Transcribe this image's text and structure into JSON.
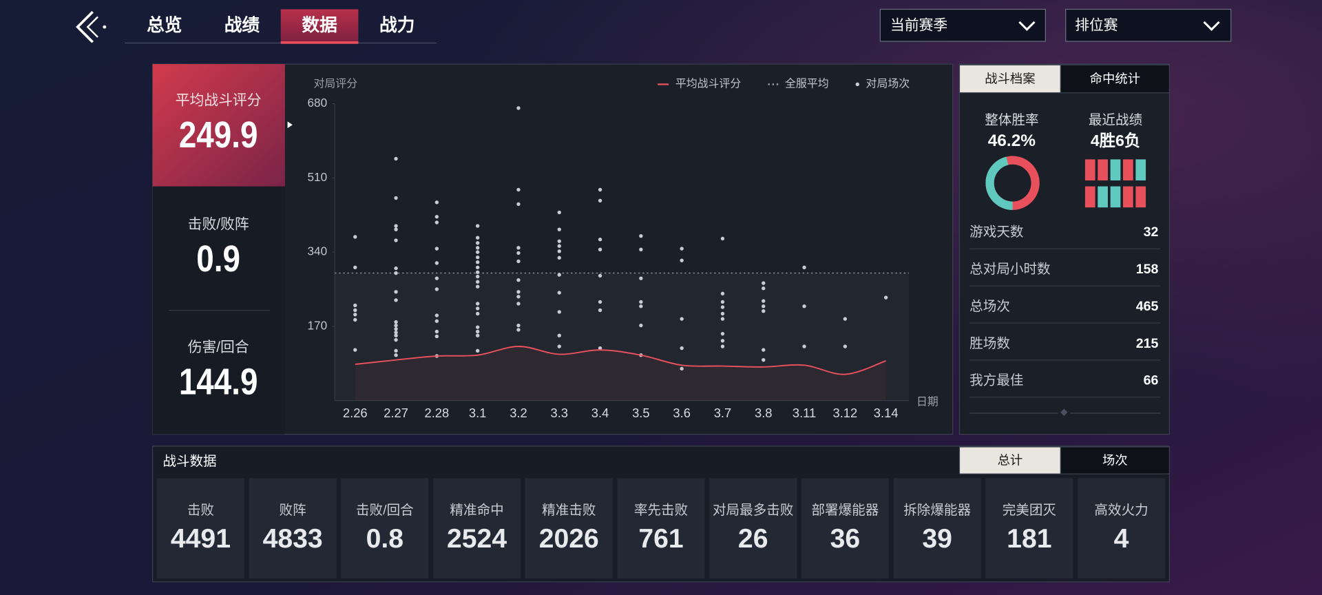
{
  "nav": {
    "tabs": [
      "总览",
      "战绩",
      "数据",
      "战力"
    ],
    "active": 2
  },
  "filters": [
    "当前赛季",
    "排位赛"
  ],
  "summary": [
    {
      "label": "平均战斗评分",
      "value": 249.9
    },
    {
      "label": "击败/败阵",
      "value": 0.9
    },
    {
      "label": "伤害/回合",
      "value": 144.9
    }
  ],
  "chart_data": {
    "type": "line",
    "y_label": "对局评分",
    "x_label": "日期",
    "categories": [
      "2.26",
      "2.27",
      "2.28",
      "3.1",
      "3.2",
      "3.3",
      "3.4",
      "3.5",
      "3.6",
      "3.7",
      "3.8",
      "3.11",
      "3.12",
      "3.14"
    ],
    "ylim": [
      0,
      680
    ],
    "yticks": [
      170,
      340,
      510,
      680
    ],
    "series": [
      {
        "name": "平均战斗评分",
        "color": "#e8505c",
        "values": [
          83,
          93,
          102,
          104,
          124,
          106,
          116,
          104,
          81,
          79,
          77,
          81,
          60,
          91
        ]
      },
      {
        "name": "全服平均",
        "color": "#9aa0aa",
        "value": 292
      },
      {
        "name": "对局场次",
        "color": "#c8ccd2",
        "values": [
          [
            375,
            305,
            218,
            207,
            197,
            185,
            116
          ],
          [
            554,
            464,
            400,
            392,
            367,
            303,
            292,
            249,
            230,
            180,
            172,
            164,
            156,
            149,
            139,
            114,
            104
          ],
          [
            454,
            421,
            408,
            348,
            315,
            280,
            255,
            195,
            182,
            158,
            147,
            102
          ],
          [
            400,
            373,
            361,
            350,
            340,
            328,
            317,
            305,
            294,
            284,
            272,
            261,
            222,
            211,
            199,
            168,
            158,
            149,
            114
          ],
          [
            670,
            483,
            450,
            350,
            338,
            319,
            276,
            249,
            238,
            222,
            172,
            162
          ],
          [
            431,
            392,
            365,
            354,
            342,
            327,
            288,
            247,
            203,
            149,
            124
          ],
          [
            483,
            458,
            369,
            346,
            286,
            226,
            207,
            120
          ],
          [
            377,
            346,
            280,
            226,
            216,
            172,
            104
          ],
          [
            348,
            321,
            187,
            120,
            73
          ],
          [
            371,
            245,
            226,
            214,
            199,
            187,
            153,
            137,
            124
          ],
          [
            269,
            257,
            228,
            216,
            205,
            116,
            93
          ],
          [
            305,
            216,
            124
          ],
          [
            187,
            124
          ],
          [
            236
          ]
        ]
      }
    ]
  },
  "profile": {
    "tabs": [
      "战斗档案",
      "命中统计"
    ],
    "active": 0,
    "win_rate": {
      "label": "整体胜率",
      "value": 46.2,
      "value_label": "46.2%"
    },
    "recent": {
      "label": "最近战绩",
      "value": "4胜6负"
    },
    "stats": [
      {
        "label": "游戏天数",
        "value": 32
      },
      {
        "label": "总对局小时数",
        "value": 158
      },
      {
        "label": "总场次",
        "value": 465
      },
      {
        "label": "胜场数",
        "value": 215
      },
      {
        "label": "我方最佳",
        "value": 66
      }
    ]
  },
  "combat": {
    "title": "战斗数据",
    "tabs": [
      "总计",
      "场次"
    ],
    "active": 0,
    "stats": [
      {
        "label": "击败",
        "value": 4491
      },
      {
        "label": "败阵",
        "value": 4833
      },
      {
        "label": "击败/回合",
        "value": 0.8
      },
      {
        "label": "精准命中",
        "value": 2524
      },
      {
        "label": "精准击败",
        "value": 2026
      },
      {
        "label": "率先击败",
        "value": 761
      },
      {
        "label": "对局最多击败",
        "value": 26
      },
      {
        "label": "部署爆能器",
        "value": 36
      },
      {
        "label": "拆除爆能器",
        "value": 39
      },
      {
        "label": "完美团灭",
        "value": 181
      },
      {
        "label": "高效火力",
        "value": 4
      }
    ]
  }
}
